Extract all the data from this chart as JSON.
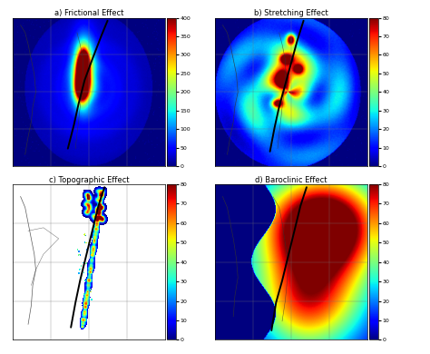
{
  "panels": [
    {
      "label": "a) Frictional Effect",
      "colorbar_max": 400,
      "colorbar_ticks": [
        0,
        50,
        100,
        150,
        200,
        250,
        300,
        350,
        400
      ],
      "pattern": "frictional"
    },
    {
      "label": "b) Stretching Effect",
      "colorbar_max": 80,
      "colorbar_ticks": [
        0,
        10,
        20,
        30,
        40,
        50,
        60,
        70,
        80
      ],
      "pattern": "stretching"
    },
    {
      "label": "c) Topographic Effect",
      "colorbar_max": 80,
      "colorbar_ticks": [
        0,
        10,
        20,
        30,
        40,
        50,
        60,
        70,
        80
      ],
      "pattern": "topographic"
    },
    {
      "label": "d) Baroclinic Effect",
      "colorbar_max": 80,
      "colorbar_ticks": [
        0,
        10,
        20,
        30,
        40,
        50,
        60,
        70,
        80
      ],
      "pattern": "baroclinic"
    }
  ],
  "fig_width": 4.74,
  "fig_height": 3.9,
  "dpi": 100,
  "land_color": "#e8e8e8",
  "ocean_bg": "#0000cc",
  "grid_color": "#777777",
  "track_color": "#000000",
  "title_fontsize": 6.0,
  "cb_tick_fontsize": 4.5
}
